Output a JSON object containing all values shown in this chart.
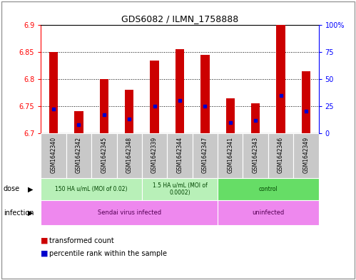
{
  "title": "GDS6082 / ILMN_1758888",
  "samples": [
    "GSM1642340",
    "GSM1642342",
    "GSM1642345",
    "GSM1642348",
    "GSM1642339",
    "GSM1642344",
    "GSM1642347",
    "GSM1642341",
    "GSM1642343",
    "GSM1642346",
    "GSM1642349"
  ],
  "bar_values": [
    6.85,
    6.74,
    6.8,
    6.78,
    6.835,
    6.855,
    6.845,
    6.765,
    6.755,
    6.9,
    6.815
  ],
  "percentile_values": [
    22,
    8,
    17,
    13,
    25,
    30,
    25,
    10,
    12,
    35,
    20
  ],
  "ymin": 6.7,
  "ymax": 6.9,
  "yticks": [
    6.7,
    6.75,
    6.8,
    6.85,
    6.9
  ],
  "right_yticks": [
    0,
    25,
    50,
    75,
    100
  ],
  "bar_color": "#cc0000",
  "dot_color": "#0000cc",
  "bar_width": 0.35,
  "dose_groups": [
    {
      "label": "150 HA u/mL (MOI of 0.02)",
      "start": 0,
      "end": 4,
      "color": "#b8f0b8"
    },
    {
      "label": "1.5 HA u/mL (MOI of\n0.0002)",
      "start": 4,
      "end": 7,
      "color": "#b8f0b8"
    },
    {
      "label": "control",
      "start": 7,
      "end": 11,
      "color": "#66dd66"
    }
  ],
  "infection_groups": [
    {
      "label": "Sendai virus infected",
      "start": 0,
      "end": 7,
      "color": "#ee88ee"
    },
    {
      "label": "uninfected",
      "start": 7,
      "end": 11,
      "color": "#ee88ee"
    }
  ],
  "grid_color": "black",
  "grid_linestyle": ":",
  "label_bg_color": "#c8c8c8"
}
